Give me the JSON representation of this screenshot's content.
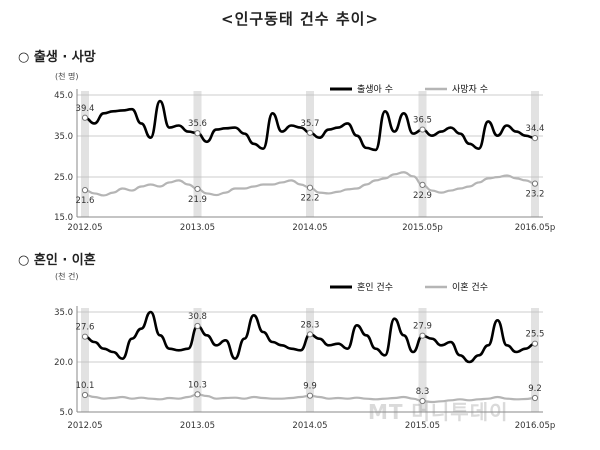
{
  "title": "<인구동태 건수 추이>",
  "watermark": "MT 머니투데이",
  "chart_data": [
    {
      "type": "line",
      "section_title": "○ 출생 · 사망",
      "unit": "(천 명)",
      "y_ticks": [
        "45.0",
        "35.0",
        "25.0",
        "15.0"
      ],
      "ylim": [
        15,
        45
      ],
      "x_tick_labels": [
        "2012.05",
        "2013.05",
        "2014.05",
        "2015.05p",
        "2016.05p"
      ],
      "months": 49,
      "grid": false,
      "legend_position": "top-right",
      "series": [
        {
          "name": "출생아 수",
          "color": "#000000",
          "values": [
            39.4,
            38.0,
            40.5,
            41.0,
            41.2,
            41.5,
            38.0,
            34.5,
            43.5,
            37.0,
            37.5,
            36.0,
            35.6,
            33.5,
            36.5,
            36.8,
            37.0,
            35.5,
            33.0,
            31.8,
            40.5,
            36.0,
            37.5,
            37.0,
            35.7,
            34.5,
            36.5,
            37.0,
            38.0,
            35.0,
            32.0,
            31.5,
            41.0,
            36.0,
            40.5,
            35.5,
            36.5,
            35.0,
            36.0,
            37.0,
            35.5,
            33.0,
            31.8,
            38.5,
            35.0,
            37.5,
            36.0,
            35.0,
            34.4
          ],
          "labels": [
            {
              "index": 0,
              "text": "39.4"
            },
            {
              "index": 12,
              "text": "35.6"
            },
            {
              "index": 24,
              "text": "35.7"
            },
            {
              "index": 36,
              "text": "36.5"
            },
            {
              "index": 48,
              "text": "34.4"
            }
          ]
        },
        {
          "name": "사망자 수",
          "color": "#b5b5b5",
          "values": [
            21.6,
            20.8,
            20.3,
            21.0,
            22.0,
            21.5,
            22.5,
            23.0,
            22.5,
            23.5,
            24.0,
            23.0,
            21.9,
            20.8,
            20.4,
            21.0,
            22.0,
            22.0,
            22.5,
            23.0,
            23.0,
            23.5,
            24.0,
            23.0,
            22.2,
            21.0,
            20.8,
            21.2,
            21.8,
            22.0,
            23.0,
            24.0,
            24.5,
            25.5,
            26.0,
            25.0,
            22.9,
            21.5,
            21.0,
            21.5,
            22.0,
            22.5,
            23.5,
            24.5,
            24.8,
            25.2,
            24.5,
            24.0,
            23.2
          ],
          "labels": [
            {
              "index": 0,
              "text": "21.6"
            },
            {
              "index": 12,
              "text": "21.9"
            },
            {
              "index": 24,
              "text": "22.2"
            },
            {
              "index": 36,
              "text": "22.9"
            },
            {
              "index": 48,
              "text": "23.2"
            }
          ]
        }
      ]
    },
    {
      "type": "line",
      "section_title": "○ 혼인 · 이혼",
      "unit": "(천 건)",
      "y_ticks": [
        "35.0",
        "20.0",
        "5.0"
      ],
      "ylim": [
        5,
        35
      ],
      "x_tick_labels": [
        "2012.05",
        "2013.05",
        "2014.05",
        "2015.05",
        "2016.05p"
      ],
      "months": 49,
      "grid": false,
      "legend_position": "top-right",
      "series": [
        {
          "name": "혼인 건수",
          "color": "#000000",
          "values": [
            27.6,
            26.0,
            24.0,
            23.0,
            21.0,
            27.0,
            30.0,
            35.0,
            28.0,
            24.0,
            23.5,
            24.0,
            30.8,
            28.0,
            25.0,
            26.5,
            21.0,
            27.0,
            34.0,
            29.0,
            26.0,
            25.0,
            24.0,
            23.5,
            28.3,
            27.0,
            25.0,
            25.5,
            24.0,
            31.0,
            28.0,
            24.0,
            22.0,
            33.0,
            28.0,
            23.0,
            27.9,
            27.0,
            25.0,
            26.0,
            22.0,
            20.0,
            22.0,
            25.0,
            32.5,
            25.0,
            23.0,
            24.0,
            25.5
          ],
          "labels": [
            {
              "index": 0,
              "text": "27.6"
            },
            {
              "index": 12,
              "text": "30.8"
            },
            {
              "index": 24,
              "text": "28.3"
            },
            {
              "index": 36,
              "text": "27.9"
            },
            {
              "index": 48,
              "text": "25.5"
            }
          ]
        },
        {
          "name": "이혼 건수",
          "color": "#b5b5b5",
          "values": [
            10.1,
            9.5,
            9.0,
            9.2,
            9.5,
            9.0,
            9.3,
            9.0,
            8.8,
            9.2,
            9.0,
            9.5,
            10.3,
            9.8,
            9.0,
            9.2,
            9.3,
            9.0,
            9.5,
            9.2,
            9.0,
            9.0,
            9.2,
            9.5,
            9.9,
            9.5,
            9.0,
            9.2,
            9.0,
            9.3,
            9.0,
            8.8,
            9.0,
            9.2,
            9.5,
            9.0,
            8.3,
            8.0,
            8.2,
            8.5,
            8.8,
            8.5,
            8.8,
            9.0,
            9.5,
            9.0,
            8.8,
            8.9,
            9.2
          ],
          "labels": [
            {
              "index": 0,
              "text": "10.1"
            },
            {
              "index": 12,
              "text": "10.3"
            },
            {
              "index": 24,
              "text": "9.9"
            },
            {
              "index": 36,
              "text": "8.3"
            },
            {
              "index": 48,
              "text": "9.2"
            }
          ]
        }
      ]
    }
  ]
}
